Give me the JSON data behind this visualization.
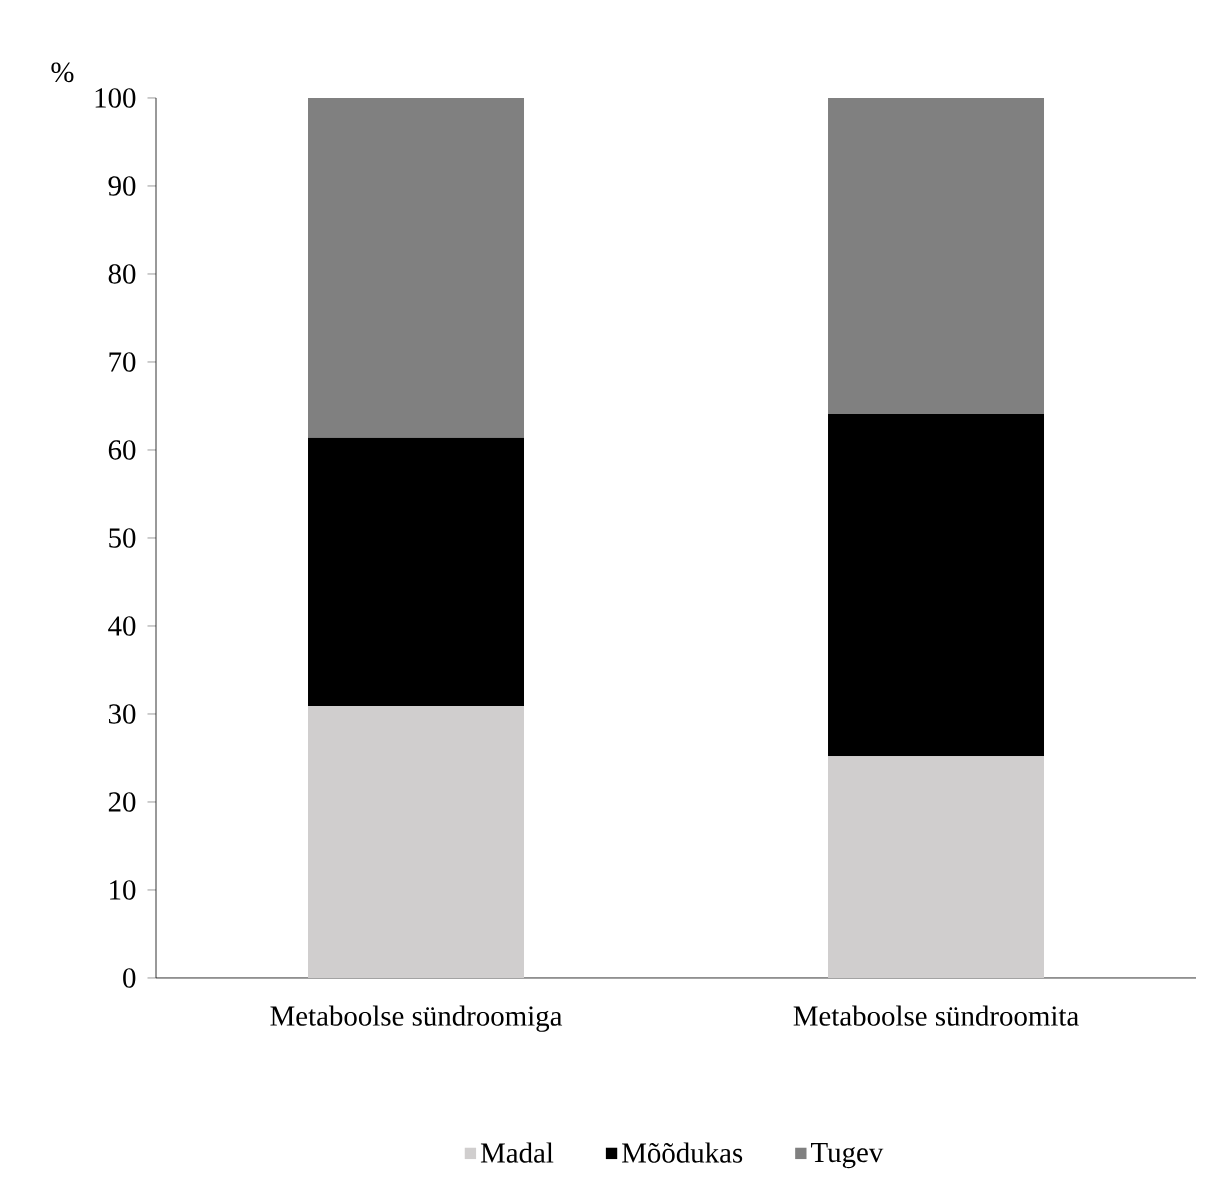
{
  "chart_data": {
    "type": "bar",
    "stacked": true,
    "ylabel": "%",
    "categories": [
      "Metaboolse sündroomiga",
      "Metaboolse sündroomita"
    ],
    "series": [
      {
        "name": "Madal",
        "color": "#d0cece",
        "values": [
          30.9,
          25.2
        ]
      },
      {
        "name": "Mõõdukas",
        "color": "#000000",
        "values": [
          30.5,
          38.9
        ]
      },
      {
        "name": "Tugev",
        "color": "#808080",
        "values": [
          38.6,
          35.9
        ]
      }
    ],
    "ylim": [
      0,
      100
    ],
    "yticks": [
      0,
      10,
      20,
      30,
      40,
      50,
      60,
      70,
      80,
      90,
      100
    ],
    "grid": false,
    "legend": "bottom"
  }
}
